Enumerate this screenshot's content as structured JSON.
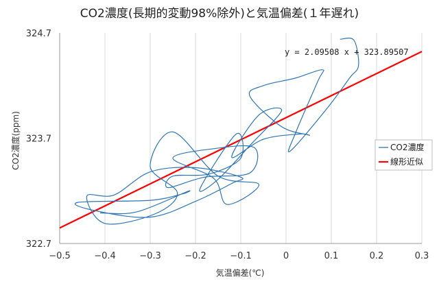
{
  "chart_data": {
    "type": "line",
    "title": "CO2濃度(長期的変動98%除外)と気温偏差(１年遅れ)",
    "xlabel": "気温偏差(℃)",
    "ylabel": "CO2濃度(ppm)",
    "xlim": [
      -0.5,
      0.3
    ],
    "ylim": [
      322.7,
      324.7
    ],
    "x_ticks": [
      -0.5,
      -0.4,
      -0.3,
      -0.2,
      -0.1,
      0,
      0.1,
      0.2,
      0.3
    ],
    "x_tick_labels": [
      "−0.5",
      "−0.4",
      "−0.3",
      "−0.2",
      "−0.1",
      "0",
      "0.1",
      "0.2",
      "0.3"
    ],
    "y_ticks": [
      322.7,
      323.7,
      324.7
    ],
    "y_tick_labels": [
      "322.7",
      "323.7",
      "324.7"
    ],
    "grid": "vertical",
    "legend_position": "right",
    "annotation": "y = 2.09508 x + 323.89507",
    "series": [
      {
        "name": "CO2濃度",
        "color": "#2e75b6",
        "kind": "line",
        "x": [
          -0.41,
          -0.33,
          -0.22,
          -0.23,
          -0.3,
          -0.46,
          -0.42,
          -0.3,
          -0.2,
          -0.12,
          -0.1,
          -0.2,
          -0.3,
          -0.38,
          -0.44,
          -0.4,
          -0.29,
          -0.24,
          -0.3,
          -0.25,
          -0.15,
          -0.06,
          -0.13,
          -0.16,
          -0.25,
          -0.16,
          -0.07,
          -0.08,
          -0.18,
          -0.26,
          -0.25,
          -0.17,
          -0.1,
          -0.11,
          -0.19,
          -0.15,
          -0.08,
          -0.01,
          -0.06,
          -0.12,
          -0.05,
          0.03,
          0.05,
          -0.01,
          -0.08,
          -0.05,
          0.02,
          0.08,
          0.07,
          0.02,
          0.01,
          0.09,
          0.14,
          0.16,
          0.15,
          0.12
        ],
        "y": [
          322.99,
          323.0,
          323.19,
          323.17,
          323.11,
          323.09,
          323.01,
          322.95,
          323.1,
          323.27,
          323.33,
          323.42,
          323.38,
          323.16,
          323.15,
          322.89,
          322.98,
          323.18,
          323.43,
          323.76,
          323.34,
          323.26,
          323.07,
          323.32,
          323.51,
          323.6,
          323.61,
          323.37,
          323.33,
          323.23,
          323.34,
          323.36,
          323.51,
          323.74,
          323.22,
          323.31,
          323.63,
          323.96,
          323.92,
          323.52,
          323.69,
          323.74,
          323.73,
          323.81,
          324.1,
          324.2,
          324.27,
          324.35,
          324.24,
          323.74,
          323.58,
          323.98,
          324.27,
          324.39,
          324.63,
          324.64
        ]
      },
      {
        "name": "線形近似",
        "color": "#ff0000",
        "kind": "trendline",
        "slope": 2.09508,
        "intercept": 323.89507
      }
    ]
  }
}
